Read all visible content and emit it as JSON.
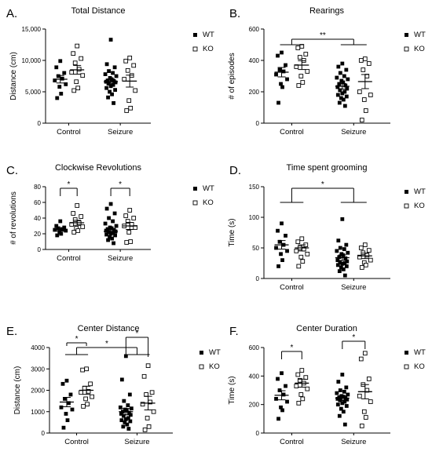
{
  "chart_data": [
    {
      "panel": "A.",
      "type": "scatter",
      "title": "Total Distance",
      "ylabel": "Distance (cm)",
      "ylim": [
        0,
        15000
      ],
      "yticks": [
        "0",
        "5,000",
        "10,000",
        "15,000"
      ],
      "ytick_values": [
        0,
        5000,
        10000,
        15000
      ],
      "categories": [
        "Control",
        "Seizure"
      ],
      "legend": [
        "WT",
        "KO"
      ],
      "series": [
        {
          "name": "WT",
          "values": [
            [
              9900,
              8900,
              8000,
              7500,
              7100,
              6800,
              6200,
              5800,
              4700,
              4000
            ],
            [
              13300,
              9400,
              8900,
              8300,
              8000,
              7800,
              7500,
              7200,
              7000,
              6800,
              6700,
              6600,
              6500,
              6300,
              6100,
              5900,
              5600,
              5300,
              5000,
              4600,
              4100,
              3200
            ]
          ],
          "means": [
            7000,
            6600
          ],
          "sem": [
            600,
            450
          ]
        },
        {
          "name": "KO",
          "values": [
            [
              12300,
              11100,
              10300,
              9600,
              8600,
              8100,
              7600,
              6600,
              5600,
              5200
            ],
            [
              10400,
              9900,
              9200,
              8400,
              7600,
              7000,
              5200,
              3600,
              2400,
              2000
            ]
          ],
          "means": [
            8500,
            6700
          ],
          "sem": [
            700,
            950
          ]
        }
      ],
      "significance": []
    },
    {
      "panel": "B.",
      "type": "scatter",
      "title": "Rearings",
      "ylabel": "# of episodes",
      "ylim": [
        0,
        600
      ],
      "yticks": [
        "0",
        "200",
        "400",
        "600"
      ],
      "ytick_values": [
        0,
        200,
        400,
        600
      ],
      "categories": [
        "Control",
        "Seizure"
      ],
      "legend": [
        "WT",
        "KO"
      ],
      "series": [
        {
          "name": "WT",
          "values": [
            [
              450,
              430,
              370,
              340,
              330,
              310,
              280,
              250,
              230,
              130
            ],
            [
              380,
              360,
              340,
              320,
              300,
              290,
              280,
              270,
              260,
              250,
              240,
              230,
              220,
              210,
              200,
              190,
              180,
              170,
              160,
              150,
              130,
              110
            ]
          ],
          "means": [
            325,
            235
          ],
          "sem": [
            30,
            18
          ]
        },
        {
          "name": "KO",
          "values": [
            [
              490,
              480,
              440,
              420,
              400,
              360,
              330,
              300,
              260,
              240
            ],
            [
              410,
              400,
              380,
              340,
              300,
              200,
              180,
              150,
              80,
              20
            ]
          ],
          "means": [
            370,
            265
          ],
          "sem": [
            28,
            45
          ]
        }
      ],
      "significance": [
        {
          "label": "**",
          "type": "bracket_groups"
        }
      ]
    },
    {
      "panel": "C.",
      "type": "scatter",
      "title": "Clockwise Revolutions",
      "ylabel": "# of revolutions",
      "ylim": [
        0,
        80
      ],
      "yticks": [
        "0",
        "20",
        "40",
        "60",
        "80"
      ],
      "ytick_values": [
        0,
        20,
        40,
        60,
        80
      ],
      "categories": [
        "Control",
        "Seizure"
      ],
      "legend": [
        "WT",
        "KO"
      ],
      "series": [
        {
          "name": "WT",
          "values": [
            [
              36,
              30,
              28,
              27,
              26,
              25,
              24,
              22,
              20,
              18
            ],
            [
              58,
              52,
              46,
              40,
              36,
              33,
              30,
              28,
              27,
              26,
              25,
              24,
              23,
              22,
              21,
              20,
              19,
              18,
              16,
              14,
              12,
              8
            ]
          ],
          "means": [
            25,
            23
          ],
          "sem": [
            1.8,
            2.3
          ]
        },
        {
          "name": "KO",
          "values": [
            [
              56,
              46,
              42,
              38,
              34,
              32,
              29,
              27,
              24,
              22
            ],
            [
              50,
              43,
              40,
              36,
              32,
              30,
              28,
              22,
              10,
              9
            ]
          ],
          "means": [
            34,
            30
          ],
          "sem": [
            3.2,
            4.5
          ]
        }
      ],
      "significance": [
        {
          "label": "*",
          "type": "bracket_within"
        },
        {
          "label": "*",
          "type": "bracket_within"
        }
      ]
    },
    {
      "panel": "D.",
      "type": "scatter",
      "title": "Time spent grooming",
      "ylabel": "Time  (s)",
      "ylim": [
        0,
        150
      ],
      "yticks": [
        "0",
        "50",
        "100",
        "150"
      ],
      "ytick_values": [
        0,
        50,
        100,
        150
      ],
      "categories": [
        "Control",
        "Seizure"
      ],
      "legend": [
        "WT",
        "KO"
      ],
      "series": [
        {
          "name": "WT",
          "values": [
            [
              90,
              78,
              70,
              60,
              55,
              50,
              45,
              40,
              30,
              20
            ],
            [
              97,
              62,
              55,
              50,
              48,
              45,
              42,
              40,
              38,
              35,
              33,
              30,
              28,
              26,
              25,
              24,
              22,
              20,
              18,
              15,
              12,
              5
            ]
          ],
          "means": [
            55,
            34
          ],
          "sem": [
            7,
            4.5
          ]
        },
        {
          "name": "KO",
          "values": [
            [
              65,
              60,
              55,
              50,
              48,
              45,
              40,
              35,
              28,
              20
            ],
            [
              55,
              50,
              46,
              42,
              38,
              35,
              30,
              26,
              22,
              18
            ]
          ],
          "means": [
            50,
            37
          ],
          "sem": [
            5,
            4.5
          ]
        }
      ],
      "significance": [
        {
          "label": "*",
          "type": "bracket_groups"
        }
      ]
    },
    {
      "panel": "E.",
      "type": "scatter",
      "title": "Center Distance",
      "ylabel": "Distance (cm)",
      "ylim": [
        0,
        4000
      ],
      "yticks": [
        "0",
        "1000",
        "2000",
        "3000",
        "4000"
      ],
      "ytick_values": [
        0,
        1000,
        2000,
        3000,
        4000
      ],
      "categories": [
        "Control",
        "Seizure"
      ],
      "legend": [
        "WT",
        "KO"
      ],
      "series": [
        {
          "name": "WT",
          "values": [
            [
              2450,
              2300,
              1800,
              1600,
              1400,
              1200,
              1100,
              900,
              600,
              250
            ],
            [
              3600,
              2500,
              1800,
              1500,
              1300,
              1200,
              1150,
              1100,
              1050,
              1000,
              950,
              900,
              850,
              800,
              700,
              650,
              600,
              550,
              500,
              400,
              300,
              200
            ]
          ],
          "means": [
            1450,
            1000
          ],
          "sem": [
            220,
            150
          ]
        },
        {
          "name": "KO",
          "values": [
            [
              3000,
              2950,
              2300,
              2100,
              1950,
              1900,
              1700,
              1600,
              1350,
              1250
            ],
            [
              3150,
              2650,
              1900,
              1800,
              1450,
              1350,
              1000,
              700,
              300,
              150
            ]
          ],
          "means": [
            2000,
            1400
          ],
          "sem": [
            190,
            320
          ]
        }
      ],
      "significance": [
        {
          "label": "*",
          "type": "bracket_within"
        },
        {
          "label": "*",
          "type": "bracket_groups"
        },
        {
          "label": "*",
          "type": "bracket_within"
        }
      ]
    },
    {
      "panel": "F.",
      "type": "scatter",
      "title": "Center Duration",
      "ylabel": "Time (s)",
      "ylim": [
        0,
        600
      ],
      "yticks": [
        "0",
        "200",
        "400",
        "600"
      ],
      "ytick_values": [
        0,
        200,
        400,
        600
      ],
      "categories": [
        "Control",
        "Seizure"
      ],
      "legend": [
        "WT",
        "KO"
      ],
      "series": [
        {
          "name": "WT",
          "values": [
            [
              420,
              380,
              330,
              300,
              270,
              240,
              220,
              180,
              160,
              100
            ],
            [
              410,
              360,
              320,
              300,
              290,
              280,
              270,
              260,
              255,
              250,
              245,
              240,
              235,
              230,
              220,
              210,
              200,
              190,
              170,
              150,
              120,
              60
            ]
          ],
          "means": [
            265,
            245
          ],
          "sem": [
            32,
            17
          ]
        },
        {
          "name": "KO",
          "values": [
            [
              440,
              410,
              390,
              370,
              350,
              330,
              310,
              270,
              240,
              210
            ],
            [
              560,
              520,
              380,
              340,
              300,
              260,
              220,
              150,
              110,
              50
            ]
          ],
          "means": [
            350,
            290
          ],
          "sem": [
            28,
            50
          ]
        }
      ],
      "significance": [
        {
          "label": "*",
          "type": "bracket_within"
        },
        {
          "label": "*",
          "type": "bracket_within"
        }
      ]
    }
  ]
}
